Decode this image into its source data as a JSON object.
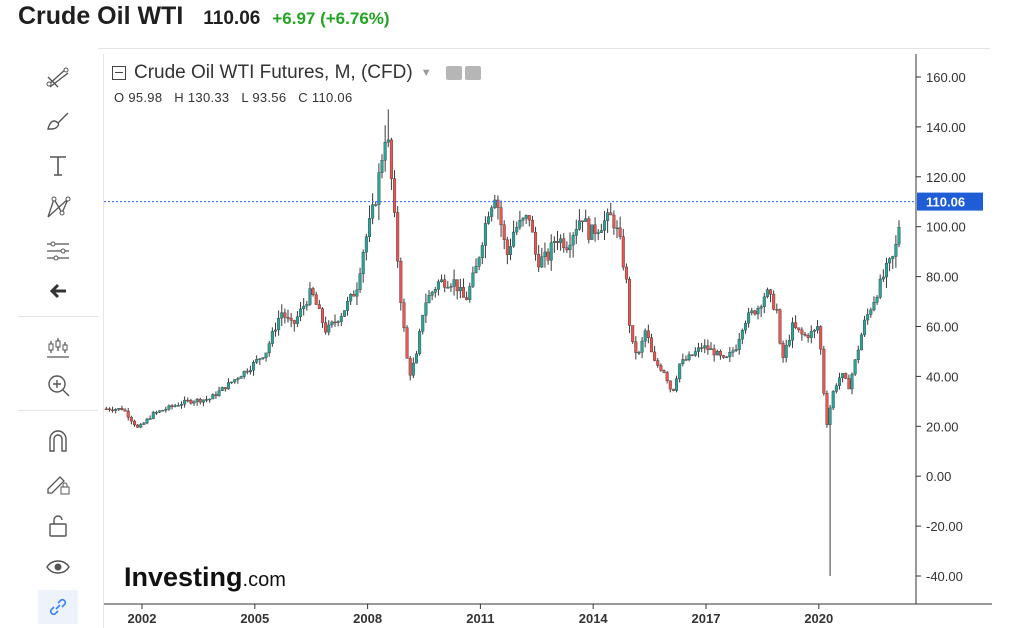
{
  "header": {
    "title": "Crude Oil WTI",
    "price": "110.06",
    "change": "+6.97 (+6.76%)"
  },
  "legend": {
    "instrument": "Crude Oil WTI Futures, M, (CFD)",
    "ohlc": {
      "o": "O 95.98",
      "h": "H 130.33",
      "l": "L 93.56",
      "c": "C 110.06"
    }
  },
  "branding": {
    "name": "Investing",
    "suffix": ".com"
  },
  "tools": [
    "line-tool-icon",
    "trend-lines-icon",
    "brush-icon",
    "text-icon",
    "pattern-icon",
    "measure-icon",
    "back-arrow-icon",
    "chart-type-icon",
    "zoom-in-icon",
    "magnet-icon",
    "lock-pencil-icon",
    "unlock-icon",
    "eye-icon",
    "link-icon"
  ],
  "colors": {
    "up": "#26a69a",
    "down": "#ef5350",
    "last_price_label": "#1e5dd6",
    "accent": "#2962ff"
  },
  "chart_data": {
    "type": "candlestick",
    "title": "Crude Oil WTI Futures, M, (CFD)",
    "timeframe": "M",
    "x_ticks": [
      "2002",
      "2005",
      "2008",
      "2011",
      "2014",
      "2017",
      "2020"
    ],
    "y_ticks": [
      "160.00",
      "140.00",
      "120.00",
      "100.00",
      "80.00",
      "60.00",
      "40.00",
      "20.00",
      "0.00",
      "-20.00",
      "-40.00"
    ],
    "ylim": [
      -50,
      165
    ],
    "xlim": [
      2001.05,
      2022.5
    ],
    "last_price": 110.06,
    "last_price_label": "110.06",
    "grid": false,
    "close_path": [
      [
        2001.0,
        27
      ],
      [
        2001.5,
        27
      ],
      [
        2001.9,
        19
      ],
      [
        2002.3,
        25
      ],
      [
        2002.8,
        28
      ],
      [
        2003.2,
        30
      ],
      [
        2003.8,
        31
      ],
      [
        2004.4,
        38
      ],
      [
        2004.9,
        44
      ],
      [
        2005.3,
        50
      ],
      [
        2005.7,
        66
      ],
      [
        2006.0,
        60
      ],
      [
        2006.5,
        74
      ],
      [
        2006.9,
        58
      ],
      [
        2007.3,
        65
      ],
      [
        2007.7,
        75
      ],
      [
        2007.9,
        92
      ],
      [
        2008.2,
        110
      ],
      [
        2008.5,
        140
      ],
      [
        2008.6,
        125
      ],
      [
        2008.9,
        68
      ],
      [
        2009.1,
        40
      ],
      [
        2009.3,
        48
      ],
      [
        2009.5,
        69
      ],
      [
        2009.9,
        78
      ],
      [
        2010.3,
        78
      ],
      [
        2010.6,
        70
      ],
      [
        2010.9,
        84
      ],
      [
        2011.2,
        106
      ],
      [
        2011.4,
        114
      ],
      [
        2011.7,
        88
      ],
      [
        2011.9,
        99
      ],
      [
        2012.3,
        104
      ],
      [
        2012.5,
        86
      ],
      [
        2012.8,
        88
      ],
      [
        2013.0,
        96
      ],
      [
        2013.3,
        93
      ],
      [
        2013.7,
        105
      ],
      [
        2013.9,
        97
      ],
      [
        2014.3,
        102
      ],
      [
        2014.5,
        104
      ],
      [
        2014.7,
        95
      ],
      [
        2014.9,
        76
      ],
      [
        2015.0,
        54
      ],
      [
        2015.2,
        48
      ],
      [
        2015.4,
        59
      ],
      [
        2015.6,
        46
      ],
      [
        2015.9,
        42
      ],
      [
        2016.1,
        33
      ],
      [
        2016.3,
        45
      ],
      [
        2016.6,
        48
      ],
      [
        2016.9,
        52
      ],
      [
        2017.2,
        50
      ],
      [
        2017.5,
        46
      ],
      [
        2017.8,
        52
      ],
      [
        2018.0,
        62
      ],
      [
        2018.4,
        68
      ],
      [
        2018.6,
        74
      ],
      [
        2018.9,
        66
      ],
      [
        2019.0,
        45
      ],
      [
        2019.3,
        60
      ],
      [
        2019.6,
        56
      ],
      [
        2019.9,
        58
      ],
      [
        2020.0,
        61
      ],
      [
        2020.2,
        20
      ],
      [
        2020.4,
        35
      ],
      [
        2020.6,
        41
      ],
      [
        2020.8,
        36
      ],
      [
        2021.0,
        48
      ],
      [
        2021.2,
        61
      ],
      [
        2021.5,
        72
      ],
      [
        2021.8,
        83
      ],
      [
        2022.0,
        88
      ],
      [
        2022.1,
        96
      ],
      [
        2022.2,
        110.06
      ]
    ],
    "spikes": [
      {
        "x": 2008.55,
        "high": 147
      },
      {
        "x": 2020.3,
        "low": -40
      },
      {
        "x": 2022.2,
        "high": 130.33
      }
    ]
  }
}
